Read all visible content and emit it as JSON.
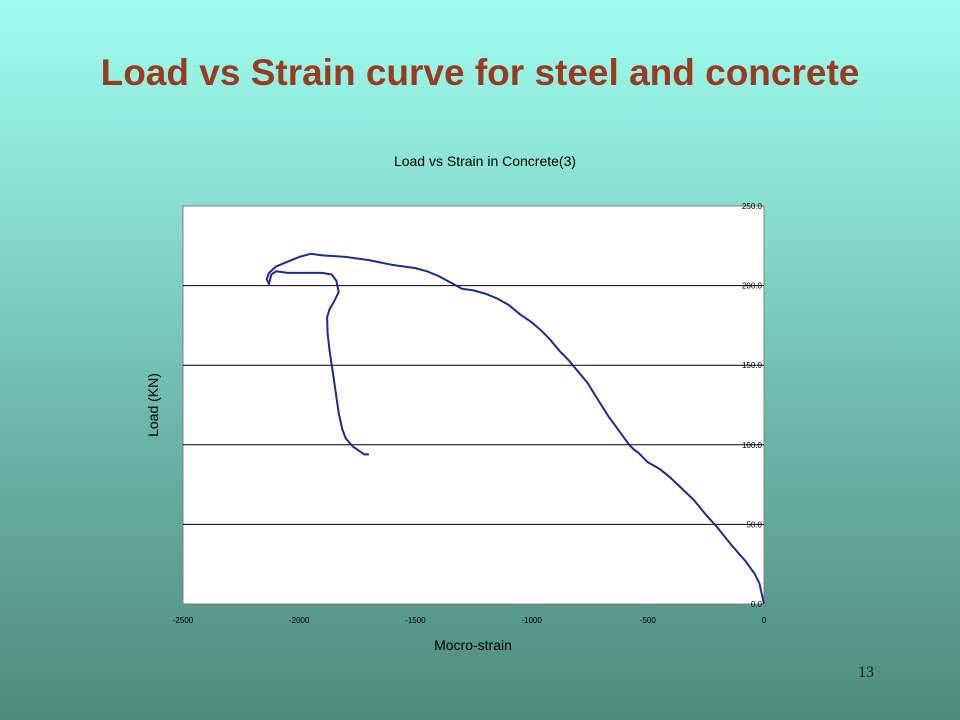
{
  "slide": {
    "title": "Load vs Strain curve for steel and concrete",
    "page_number": "13"
  },
  "colors": {
    "title": "#9a3a1e",
    "series": "#1f2a8c",
    "gridline": "#000000",
    "plot_background": "#ffffff"
  },
  "chart_data": {
    "type": "line",
    "title": "Load vs Strain in Concrete(3)",
    "xlabel": "Mocro-strain",
    "ylabel": "Load (KN)",
    "xlim": [
      -2500,
      0
    ],
    "ylim": [
      0,
      250
    ],
    "x_ticks": [
      -2500,
      -2000,
      -1500,
      -1000,
      -500,
      0
    ],
    "x_tick_labels": [
      "-2500",
      "-2000",
      "-1500",
      "-1000",
      "-500",
      "0"
    ],
    "y_ticks": [
      0,
      50,
      100,
      150,
      200,
      250
    ],
    "y_tick_labels": [
      "0.0",
      "50.0",
      "100.0",
      "150.0",
      "200.0",
      "250.0"
    ],
    "y_axis_side": "right",
    "grid": "horizontal",
    "legend": "none",
    "series": [
      {
        "points": [
          [
            0,
            0
          ],
          [
            -20,
            13
          ],
          [
            -40,
            19
          ],
          [
            -80,
            27
          ],
          [
            -140,
            37
          ],
          [
            -200,
            48
          ],
          [
            -250,
            56
          ],
          [
            -300,
            65
          ],
          [
            -350,
            72
          ],
          [
            -400,
            79
          ],
          [
            -450,
            85
          ],
          [
            -500,
            89
          ],
          [
            -540,
            95
          ],
          [
            -560,
            97
          ],
          [
            -580,
            100
          ],
          [
            -610,
            106
          ],
          [
            -640,
            112
          ],
          [
            -670,
            118
          ],
          [
            -700,
            125
          ],
          [
            -730,
            132
          ],
          [
            -760,
            139
          ],
          [
            -800,
            146
          ],
          [
            -840,
            153
          ],
          [
            -880,
            159
          ],
          [
            -920,
            166
          ],
          [
            -960,
            172
          ],
          [
            -1000,
            177
          ],
          [
            -1050,
            182
          ],
          [
            -1100,
            188
          ],
          [
            -1150,
            192
          ],
          [
            -1200,
            195
          ],
          [
            -1250,
            197
          ],
          [
            -1300,
            198
          ],
          [
            -1350,
            202
          ],
          [
            -1400,
            206
          ],
          [
            -1450,
            209
          ],
          [
            -1500,
            211
          ],
          [
            -1550,
            212
          ],
          [
            -1600,
            213
          ],
          [
            -1700,
            216
          ],
          [
            -1800,
            218
          ],
          [
            -1900,
            219
          ],
          [
            -1950,
            220
          ],
          [
            -2000,
            218
          ],
          [
            -2050,
            215
          ],
          [
            -2100,
            212
          ],
          [
            -2130,
            208
          ],
          [
            -2140,
            204
          ],
          [
            -2130,
            201
          ],
          [
            -2120,
            207
          ],
          [
            -2100,
            209
          ],
          [
            -2050,
            208
          ],
          [
            -2000,
            208
          ],
          [
            -1950,
            208
          ],
          [
            -1900,
            208
          ],
          [
            -1860,
            207
          ],
          [
            -1840,
            203
          ],
          [
            -1830,
            196
          ],
          [
            -1850,
            190
          ],
          [
            -1870,
            185
          ],
          [
            -1880,
            180
          ],
          [
            -1878,
            170
          ],
          [
            -1870,
            160
          ],
          [
            -1860,
            150
          ],
          [
            -1850,
            140
          ],
          [
            -1840,
            130
          ],
          [
            -1830,
            120
          ],
          [
            -1815,
            110
          ],
          [
            -1800,
            104
          ],
          [
            -1770,
            99
          ],
          [
            -1740,
            96
          ],
          [
            -1720,
            94
          ],
          [
            -1700,
            94
          ]
        ]
      }
    ]
  }
}
